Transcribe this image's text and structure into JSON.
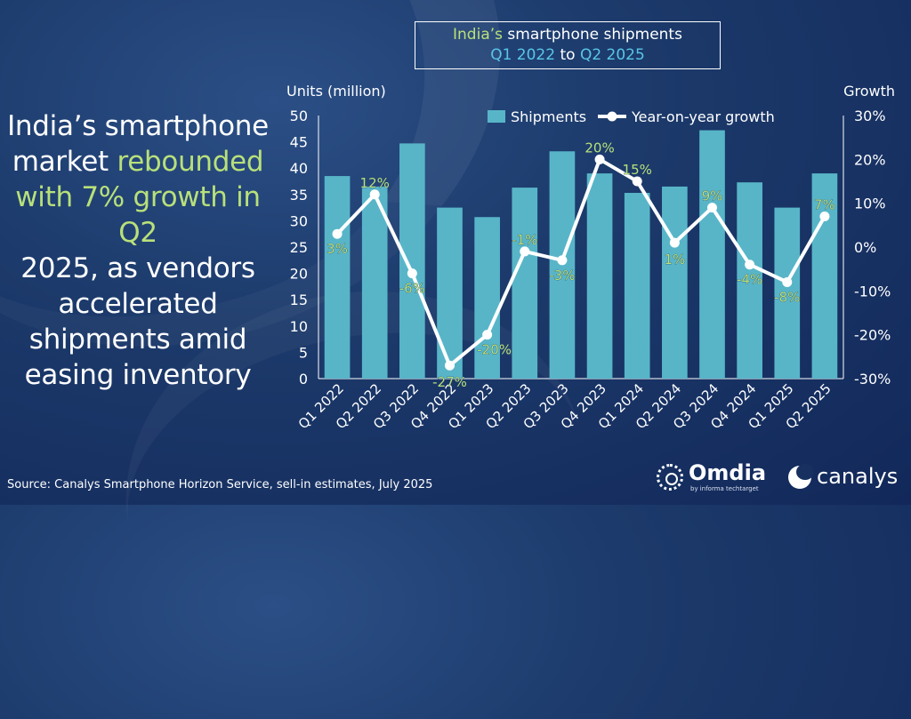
{
  "headline": {
    "line1": "India’s smartphone",
    "line2_pre": "market ",
    "line2_hl": "rebounded",
    "line3_hl": "with 7% growth in Q2",
    "line4": "2025, as vendors",
    "line5": "accelerated",
    "line6": "shipments amid",
    "line7": "easing inventory"
  },
  "title": {
    "part1_green": "India’s",
    "part1_rest": " smartphone shipments",
    "part2_a": "Q1 2022",
    "part2_to": " to ",
    "part2_b": "Q2 2025"
  },
  "source": "Source: Canalys Smartphone Horizon Service, sell-in estimates, July 2025",
  "logos": {
    "omdia": "Omdia",
    "omdia_sub": "by informa techtarget",
    "canalys": "canalys"
  },
  "colors": {
    "bar": "#58b5c8",
    "line": "#ffffff",
    "label_green": "#b8e07a",
    "accent_cyan": "#58c6e6"
  },
  "chart_data": {
    "type": "bar",
    "categories": [
      "Q1 2022",
      "Q2 2022",
      "Q3 2022",
      "Q4 2022",
      "Q1 2023",
      "Q2 2023",
      "Q3 2023",
      "Q4 2023",
      "Q1 2024",
      "Q2 2024",
      "Q3 2024",
      "Q4 2024",
      "Q1 2025",
      "Q2 2025"
    ],
    "series": [
      {
        "name": "Shipments",
        "type": "bar",
        "axis": "left",
        "values": [
          38.5,
          36.5,
          44.7,
          32.5,
          30.7,
          36.3,
          43.2,
          39.0,
          35.3,
          36.5,
          47.2,
          37.3,
          32.5,
          39.0
        ]
      },
      {
        "name": "Year-on-year growth",
        "type": "line",
        "axis": "right",
        "values": [
          3,
          12,
          -6,
          -27,
          -20,
          -1,
          -3,
          20,
          15,
          1,
          9,
          -4,
          -8,
          7
        ],
        "labels": [
          "3%",
          "12%",
          "-6%",
          "-27%",
          "-20%",
          "-1%",
          "-3%",
          "20%",
          "15%",
          "1%",
          "9%",
          "-4%",
          "-8%",
          "7%"
        ]
      }
    ],
    "ylabel": "Units (million)",
    "y2label": "Growth",
    "ylim": [
      0,
      50
    ],
    "y2lim": [
      -30,
      30
    ],
    "yticks": [
      "0",
      "5",
      "10",
      "15",
      "20",
      "25",
      "30",
      "35",
      "40",
      "45",
      "50"
    ],
    "y2ticks": [
      "-30%",
      "-20%",
      "-10%",
      "0%",
      "10%",
      "20%",
      "30%"
    ],
    "legend_position": "top"
  }
}
